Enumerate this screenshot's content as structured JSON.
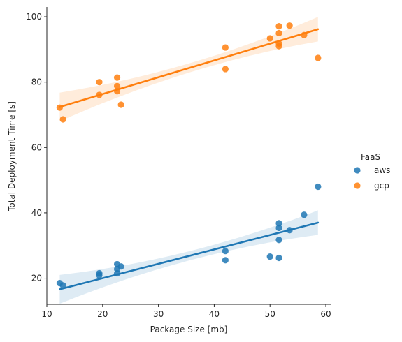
{
  "chart_data": {
    "type": "scatter",
    "title": "",
    "xlabel": "Package Size [mb]",
    "ylabel": "Total Deployment Time [s]",
    "xlim": [
      10,
      61
    ],
    "ylim": [
      12,
      103
    ],
    "xticks": [
      10,
      20,
      30,
      40,
      50,
      60
    ],
    "yticks": [
      20,
      40,
      60,
      80,
      100
    ],
    "grid": false,
    "legend": {
      "title": "FaaS",
      "placement": "right"
    },
    "series": [
      {
        "name": "aws",
        "color": "#1f77b4",
        "points": [
          [
            12.3,
            18.5
          ],
          [
            12.9,
            17.8
          ],
          [
            19.4,
            21.5
          ],
          [
            19.4,
            20.9
          ],
          [
            22.6,
            24.3
          ],
          [
            22.6,
            22.8
          ],
          [
            22.6,
            21.5
          ],
          [
            23.3,
            23.6
          ],
          [
            42.0,
            28.3
          ],
          [
            42.0,
            25.5
          ],
          [
            50.0,
            26.6
          ],
          [
            51.6,
            26.2
          ],
          [
            51.6,
            36.8
          ],
          [
            51.6,
            35.4
          ],
          [
            51.6,
            31.7
          ],
          [
            53.5,
            34.7
          ],
          [
            56.1,
            39.4
          ],
          [
            58.6,
            48.0
          ]
        ],
        "regression": {
          "start": [
            12.3,
            16.6
          ],
          "end": [
            58.6,
            37.0
          ]
        }
      },
      {
        "name": "gcp",
        "color": "#ff7f0e",
        "points": [
          [
            12.3,
            72.2
          ],
          [
            12.9,
            68.6
          ],
          [
            19.4,
            80.0
          ],
          [
            19.4,
            76.1
          ],
          [
            22.6,
            81.4
          ],
          [
            22.6,
            78.8
          ],
          [
            22.6,
            77.2
          ],
          [
            23.3,
            73.1
          ],
          [
            42.0,
            90.6
          ],
          [
            42.0,
            84.0
          ],
          [
            50.0,
            93.4
          ],
          [
            51.6,
            97.1
          ],
          [
            51.6,
            95.0
          ],
          [
            51.6,
            91.8
          ],
          [
            51.6,
            91.0
          ],
          [
            53.5,
            97.3
          ],
          [
            56.1,
            94.4
          ],
          [
            58.6,
            87.4
          ]
        ],
        "regression": {
          "start": [
            12.3,
            72.4
          ],
          "end": [
            58.6,
            96.2
          ]
        }
      }
    ]
  }
}
